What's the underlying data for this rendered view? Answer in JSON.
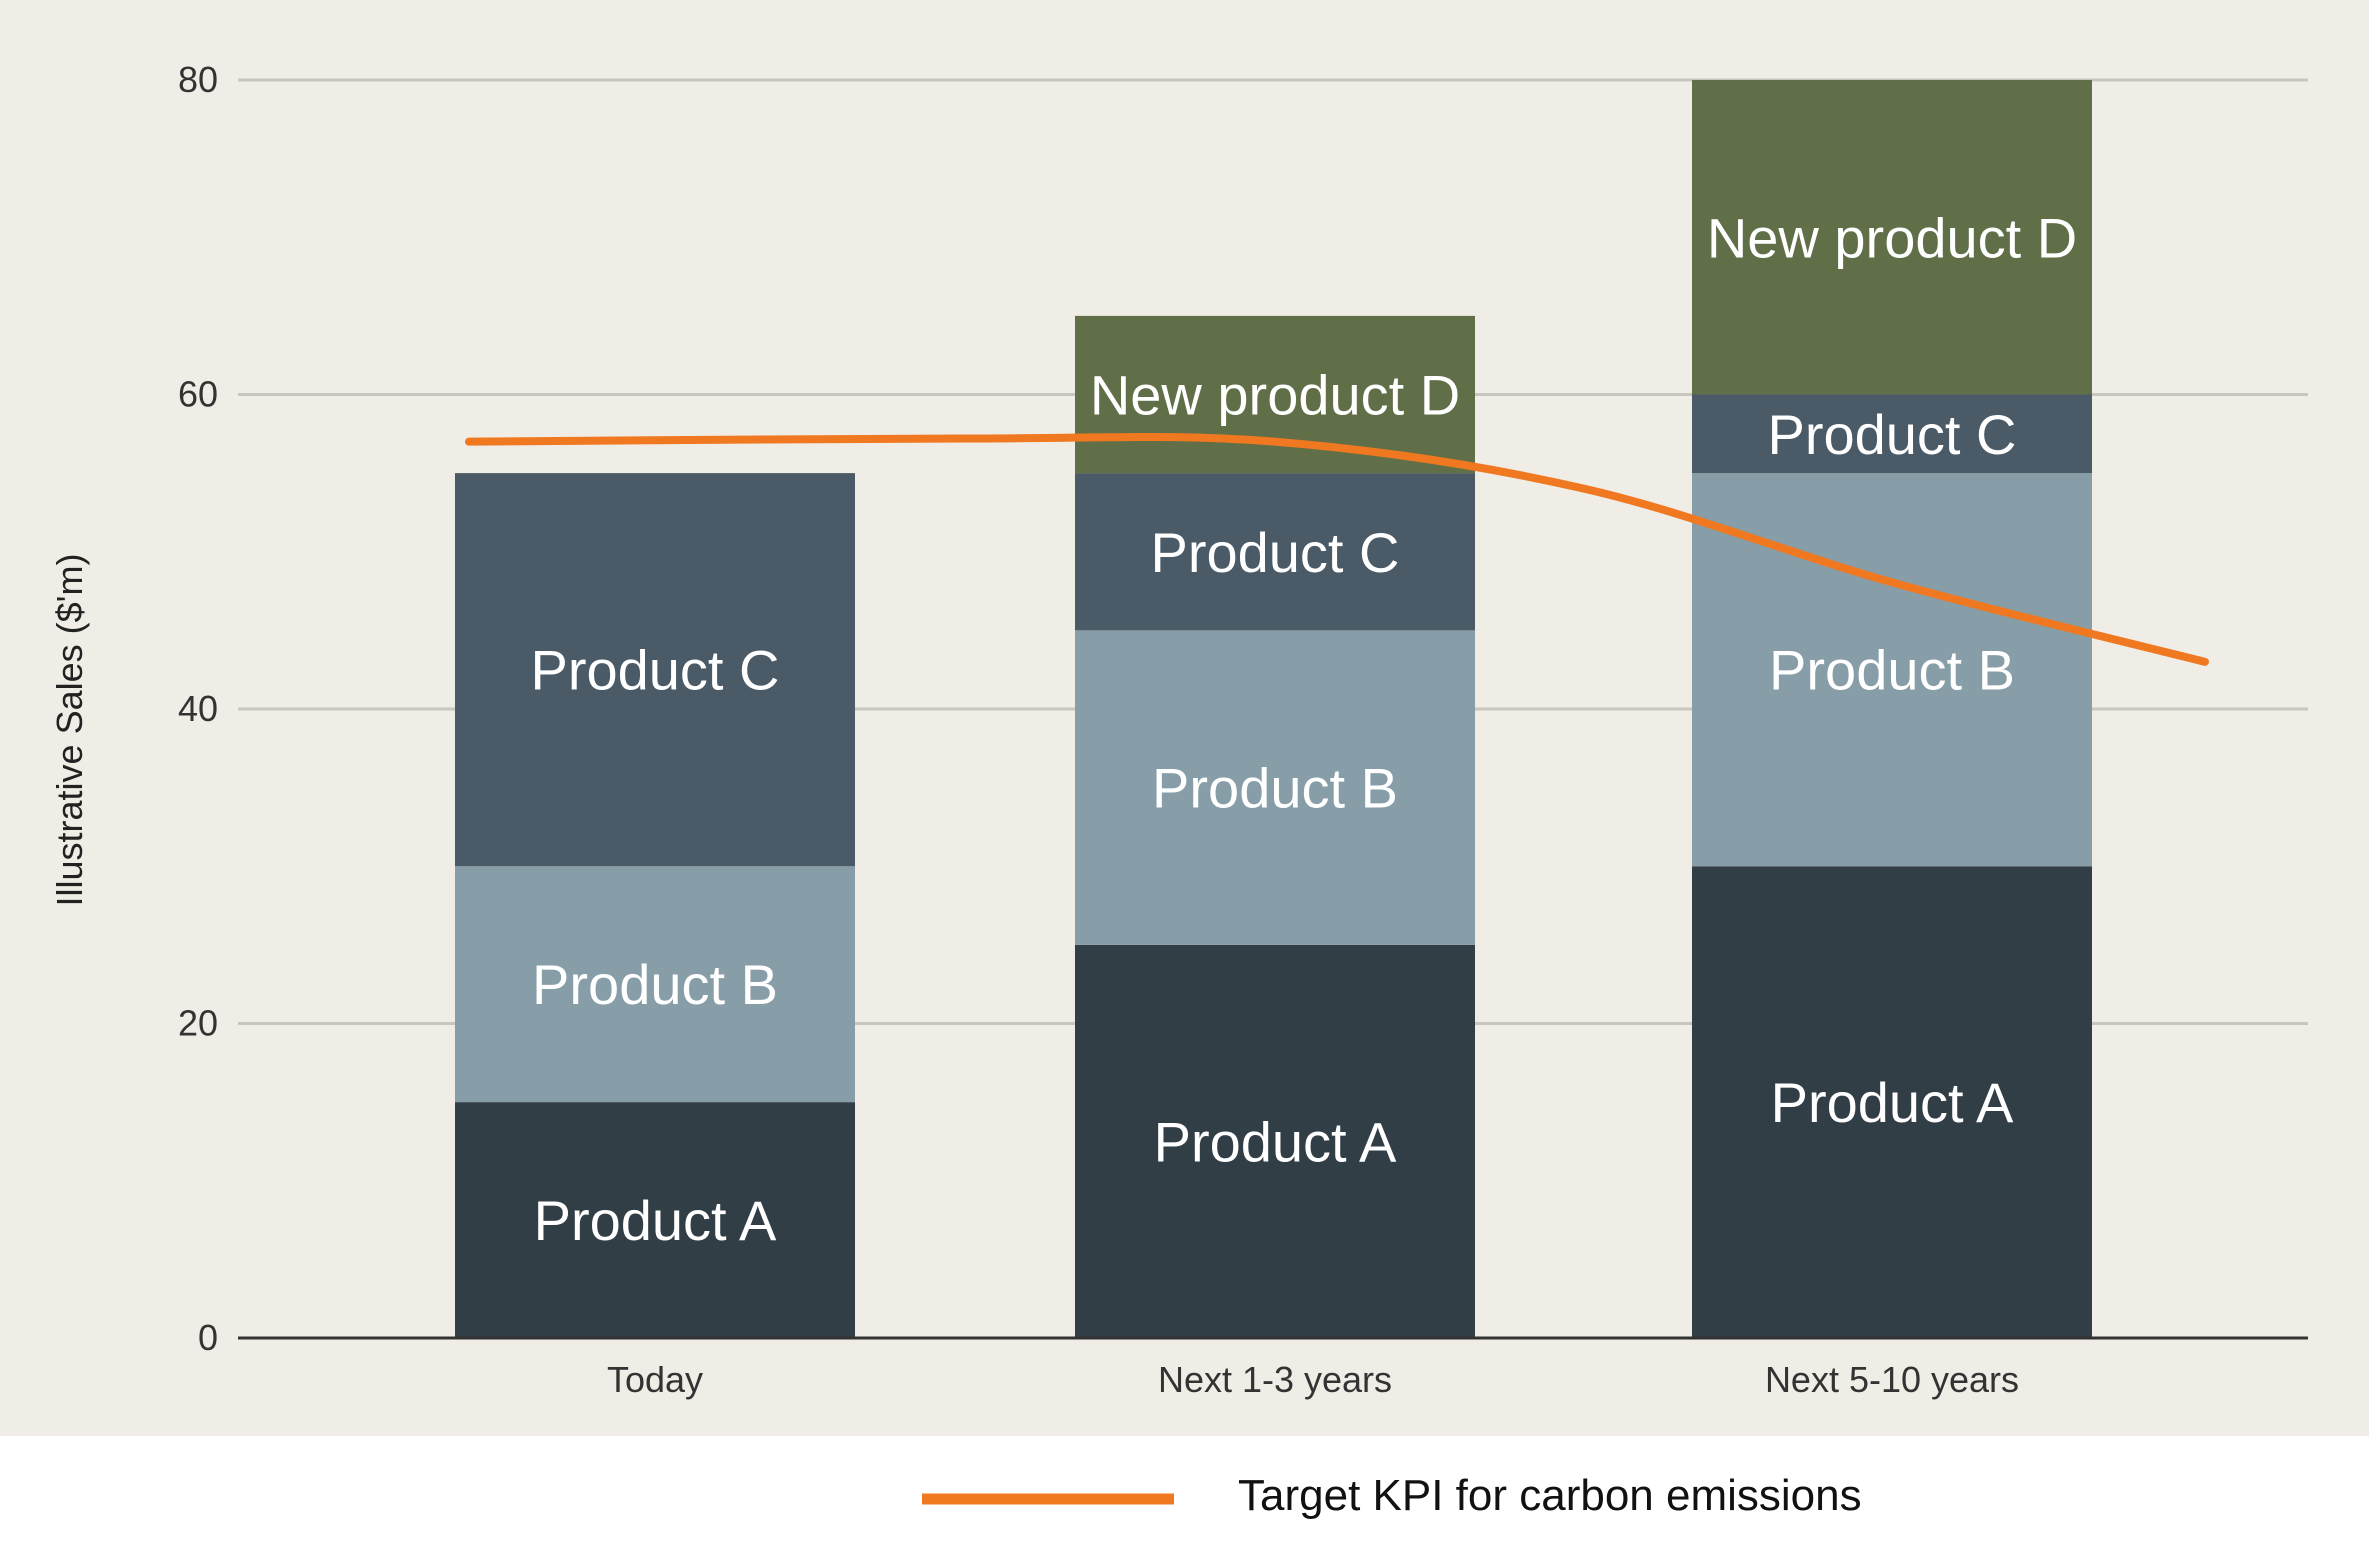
{
  "chart_data": {
    "type": "bar",
    "stacked": true,
    "categories": [
      "Today",
      "Next 1-3 years",
      "Next 5-10 years"
    ],
    "series": [
      {
        "name": "Product A",
        "values": [
          15,
          25,
          30
        ],
        "color": "#313e46"
      },
      {
        "name": "Product B",
        "values": [
          15,
          20,
          25
        ],
        "color": "#879ea9"
      },
      {
        "name": "Product C",
        "values": [
          25,
          10,
          5
        ],
        "color": "#4a5a67"
      },
      {
        "name": "New product D",
        "values": [
          0,
          10,
          20
        ],
        "color": "#606f47"
      }
    ],
    "line_series": {
      "name": "Target KPI for carbon emissions",
      "x": [
        -0.3,
        0.5,
        1.0,
        1.5,
        2.0,
        2.5
      ],
      "values": [
        57,
        57.2,
        57.0,
        54.0,
        48.0,
        43.0
      ],
      "color": "#f07820"
    },
    "ylabel": "Illustrative Sales ($'m)",
    "xlabel": "",
    "ylim": [
      0,
      80
    ],
    "yticks": [
      0,
      20,
      40,
      60,
      80
    ],
    "ytick_labels": [
      "0",
      "20",
      "40",
      "60",
      "80"
    ],
    "grid": true,
    "plot_background": "#f0ede6",
    "legend": {
      "position": "bottom",
      "entries": [
        "Target KPI for carbon emissions"
      ]
    }
  }
}
